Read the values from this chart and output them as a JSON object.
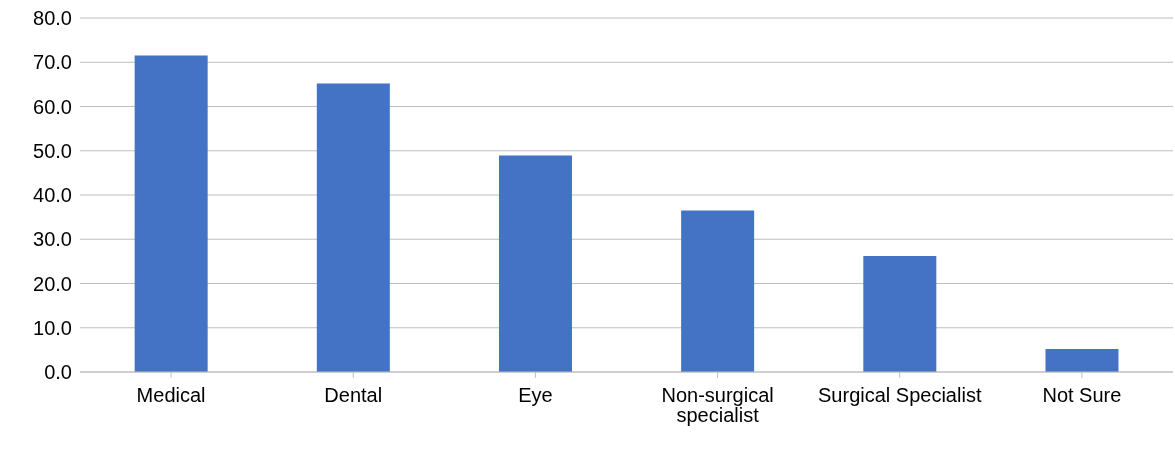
{
  "chart_data": {
    "type": "bar",
    "categories": [
      "Medical",
      "Dental",
      "Eye",
      "Non-surgical specialist",
      "Surgical Specialist",
      "Not Sure"
    ],
    "values": [
      71.5,
      65.2,
      48.9,
      36.5,
      26.2,
      5.2
    ],
    "color": "#4472c4",
    "ylim": [
      0,
      80
    ],
    "yticks": [
      {
        "value": 0,
        "label": "0.0"
      },
      {
        "value": 10,
        "label": "10.0"
      },
      {
        "value": 20,
        "label": "20.0"
      },
      {
        "value": 30,
        "label": "30.0"
      },
      {
        "value": 40,
        "label": "40.0"
      },
      {
        "value": 50,
        "label": "50.0"
      },
      {
        "value": 60,
        "label": "60.0"
      },
      {
        "value": 70,
        "label": "70.0"
      },
      {
        "value": 80,
        "label": "80.0"
      }
    ],
    "grid": "y",
    "legend": false
  }
}
